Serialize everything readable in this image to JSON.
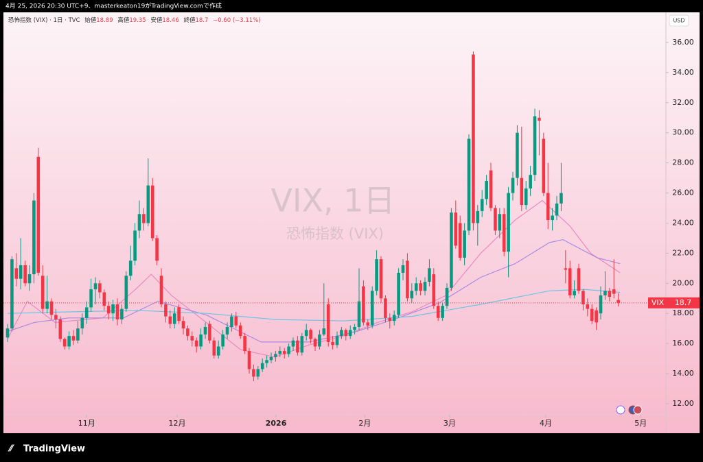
{
  "header": {
    "caption": "4月 25, 2026 20:30 UTC+9、masterkeaton19がTradingView.comで作成"
  },
  "legend": {
    "symbol": "恐怖指数 (VIX) · 1日 · TVC",
    "open_label": "始値",
    "high_label": "高値",
    "low_label": "安値",
    "close_label": "終値",
    "change": "−0.60 (−3.11%)"
  },
  "watermark": {
    "line1": "VIX, 1日",
    "line2": "恐怖指数 (VIX)"
  },
  "currency": "USD",
  "price_tag": {
    "symbol": "VIX"
  },
  "footer": {
    "brand": "TradingView"
  },
  "chart_data": {
    "type": "candlestick",
    "up_color": "#089981",
    "down_color": "#f23645",
    "xlim": [
      -0.94,
      149.84
    ],
    "xticks": [
      {
        "value": 18,
        "label": "11月"
      },
      {
        "value": 38.6,
        "label": "12月"
      },
      {
        "value": 61.1,
        "label": "2026"
      },
      {
        "value": 81.3,
        "label": "2月"
      },
      {
        "value": 100.6,
        "label": "3月"
      },
      {
        "value": 122.5,
        "label": "4月"
      },
      {
        "value": 144.1,
        "label": "5月"
      }
    ],
    "ylim": [
      10.04,
      37.91
    ],
    "yticks": [
      {
        "value": 12,
        "label": "12.00"
      },
      {
        "value": 14,
        "label": "14.00"
      },
      {
        "value": 16,
        "label": "16.00"
      },
      {
        "value": 18,
        "label": "18.00"
      },
      {
        "value": 20,
        "label": "20.00"
      },
      {
        "value": 22,
        "label": "22.00"
      },
      {
        "value": 24,
        "label": "24.00"
      },
      {
        "value": 26,
        "label": "26.00"
      },
      {
        "value": 28,
        "label": "28.00"
      },
      {
        "value": 30,
        "label": "30.00"
      },
      {
        "value": 32,
        "label": "32.00"
      },
      {
        "value": 34,
        "label": "34.00"
      },
      {
        "value": 36,
        "label": "36.00"
      }
    ],
    "grid": false,
    "ohlc": [
      [
        16.4,
        17.3,
        16.1,
        17.0
      ],
      [
        17.0,
        21.8,
        16.8,
        21.6
      ],
      [
        21.0,
        22.0,
        19.8,
        20.3
      ],
      [
        20.3,
        23.0,
        19.6,
        21.2
      ],
      [
        21.2,
        21.5,
        19.8,
        20.0
      ],
      [
        20.0,
        21.2,
        19.5,
        20.6
      ],
      [
        20.6,
        26.0,
        20.0,
        25.5
      ],
      [
        28.4,
        29.0,
        20.5,
        20.7
      ],
      [
        20.5,
        21.2,
        18.0,
        18.3
      ],
      [
        18.3,
        20.5,
        18.0,
        18.8
      ],
      [
        18.8,
        19.0,
        17.6,
        17.9
      ],
      [
        17.9,
        18.3,
        17.0,
        17.6
      ],
      [
        17.6,
        17.8,
        16.1,
        16.3
      ],
      [
        16.3,
        16.4,
        15.6,
        15.8
      ],
      [
        15.8,
        16.8,
        15.6,
        16.5
      ],
      [
        16.5,
        16.9,
        15.9,
        16.2
      ],
      [
        16.2,
        17.5,
        16.0,
        17.0
      ],
      [
        17.0,
        18.0,
        16.6,
        17.7
      ],
      [
        17.7,
        18.8,
        17.3,
        18.4
      ],
      [
        18.4,
        20.3,
        18.1,
        19.6
      ],
      [
        19.6,
        20.4,
        18.6,
        20.0
      ],
      [
        20.0,
        20.2,
        19.0,
        19.4
      ],
      [
        19.4,
        19.6,
        18.2,
        18.5
      ],
      [
        18.5,
        18.8,
        17.6,
        18.0
      ],
      [
        18.0,
        18.9,
        17.5,
        18.6
      ],
      [
        18.6,
        19.0,
        17.2,
        17.6
      ],
      [
        17.6,
        18.6,
        17.3,
        18.3
      ],
      [
        18.3,
        20.8,
        18.1,
        20.5
      ],
      [
        20.5,
        22.5,
        20.2,
        21.5
      ],
      [
        21.5,
        24.0,
        21.2,
        23.5
      ],
      [
        23.5,
        25.5,
        23.0,
        24.6
      ],
      [
        24.6,
        25.0,
        23.5,
        24.0
      ],
      [
        24.0,
        28.3,
        23.8,
        26.5
      ],
      [
        26.5,
        27.0,
        22.8,
        23.0
      ],
      [
        23.0,
        23.2,
        21.2,
        21.5
      ],
      [
        20.5,
        21.0,
        18.4,
        18.6
      ],
      [
        18.6,
        18.8,
        17.4,
        17.8
      ],
      [
        17.8,
        18.2,
        17.0,
        17.3
      ],
      [
        17.3,
        18.4,
        17.0,
        18.0
      ],
      [
        18.4,
        18.6,
        17.3,
        17.5
      ],
      [
        17.5,
        17.8,
        16.6,
        17.0
      ],
      [
        17.0,
        17.2,
        16.2,
        16.5
      ],
      [
        16.5,
        16.8,
        15.8,
        16.2
      ],
      [
        16.2,
        16.4,
        15.4,
        15.8
      ],
      [
        15.8,
        17.0,
        15.6,
        16.6
      ],
      [
        16.6,
        17.4,
        16.3,
        17.1
      ],
      [
        17.3,
        17.5,
        16.0,
        16.2
      ],
      [
        16.2,
        16.4,
        15.0,
        15.2
      ],
      [
        15.2,
        16.2,
        15.0,
        15.8
      ],
      [
        15.8,
        16.9,
        15.6,
        16.6
      ],
      [
        16.6,
        17.4,
        16.3,
        17.1
      ],
      [
        17.1,
        18.0,
        16.8,
        17.8
      ],
      [
        17.8,
        18.1,
        17.0,
        17.2
      ],
      [
        17.2,
        17.4,
        16.3,
        16.5
      ],
      [
        16.5,
        16.7,
        15.3,
        15.5
      ],
      [
        15.5,
        15.7,
        14.0,
        14.3
      ],
      [
        14.3,
        14.6,
        13.5,
        13.8
      ],
      [
        13.8,
        14.5,
        13.6,
        14.3
      ],
      [
        14.3,
        15.0,
        14.1,
        14.7
      ],
      [
        14.7,
        15.2,
        14.4,
        14.9
      ],
      [
        14.9,
        15.4,
        14.7,
        15.1
      ],
      [
        15.1,
        15.5,
        14.8,
        15.3
      ],
      [
        15.3,
        15.8,
        15.1,
        15.5
      ],
      [
        15.5,
        15.7,
        15.0,
        15.3
      ],
      [
        15.3,
        16.0,
        15.1,
        15.8
      ],
      [
        15.8,
        16.4,
        15.5,
        16.2
      ],
      [
        16.2,
        16.5,
        15.2,
        15.4
      ],
      [
        15.4,
        16.7,
        15.2,
        16.5
      ],
      [
        16.5,
        17.3,
        16.2,
        16.9
      ],
      [
        16.9,
        17.0,
        16.0,
        16.3
      ],
      [
        16.3,
        16.4,
        15.5,
        15.8
      ],
      [
        15.8,
        16.9,
        15.6,
        16.6
      ],
      [
        16.6,
        20.0,
        16.5,
        17.0
      ],
      [
        18.6,
        19.0,
        15.8,
        16.1
      ],
      [
        16.1,
        16.5,
        15.6,
        15.9
      ],
      [
        15.9,
        16.8,
        15.7,
        16.5
      ],
      [
        16.5,
        17.1,
        16.3,
        16.9
      ],
      [
        16.9,
        17.0,
        16.2,
        16.5
      ],
      [
        16.5,
        17.2,
        16.3,
        16.9
      ],
      [
        16.9,
        17.3,
        16.6,
        17.1
      ],
      [
        17.1,
        21.0,
        16.9,
        18.8
      ],
      [
        19.8,
        20.2,
        17.2,
        17.4
      ],
      [
        17.4,
        17.6,
        16.9,
        17.2
      ],
      [
        17.2,
        19.8,
        17.0,
        19.5
      ],
      [
        19.5,
        22.2,
        19.2,
        21.6
      ],
      [
        21.6,
        21.8,
        18.7,
        19.0
      ],
      [
        19.0,
        19.2,
        17.4,
        17.7
      ],
      [
        17.7,
        18.0,
        17.0,
        17.5
      ],
      [
        17.5,
        18.2,
        17.2,
        17.9
      ],
      [
        17.9,
        21.0,
        17.7,
        20.7
      ],
      [
        20.7,
        21.6,
        20.2,
        21.2
      ],
      [
        21.5,
        22.0,
        18.8,
        19.0
      ],
      [
        19.0,
        20.0,
        18.7,
        19.5
      ],
      [
        19.5,
        20.4,
        19.2,
        20.0
      ],
      [
        20.0,
        20.2,
        19.2,
        19.5
      ],
      [
        19.5,
        20.4,
        19.2,
        20.1
      ],
      [
        20.1,
        21.6,
        19.8,
        21.0
      ],
      [
        20.6,
        21.0,
        18.3,
        18.5
      ],
      [
        18.5,
        18.8,
        17.5,
        17.7
      ],
      [
        17.7,
        18.7,
        17.5,
        18.5
      ],
      [
        18.5,
        20.0,
        18.3,
        19.7
      ],
      [
        19.7,
        25.0,
        19.5,
        24.7
      ],
      [
        24.7,
        25.5,
        22.3,
        22.5
      ],
      [
        24.0,
        24.5,
        21.5,
        21.7
      ],
      [
        21.7,
        24.0,
        21.2,
        23.5
      ],
      [
        23.5,
        29.9,
        23.2,
        29.6
      ],
      [
        35.2,
        35.4,
        23.5,
        24.0
      ],
      [
        24.0,
        25.2,
        22.5,
        24.8
      ],
      [
        24.8,
        26.2,
        24.4,
        25.6
      ],
      [
        25.6,
        27.2,
        25.2,
        26.8
      ],
      [
        27.5,
        28.0,
        24.8,
        25.0
      ],
      [
        25.0,
        25.2,
        23.2,
        23.5
      ],
      [
        23.5,
        25.0,
        23.0,
        24.6
      ],
      [
        24.6,
        25.0,
        21.8,
        22.1
      ],
      [
        22.1,
        26.4,
        20.4,
        26.0
      ],
      [
        26.0,
        27.4,
        25.5,
        27.0
      ],
      [
        27.0,
        30.5,
        26.5,
        30.0
      ],
      [
        27.0,
        30.4,
        24.8,
        25.2
      ],
      [
        25.2,
        26.8,
        24.9,
        26.3
      ],
      [
        26.3,
        27.8,
        25.8,
        27.2
      ],
      [
        27.2,
        31.6,
        26.8,
        31.1
      ],
      [
        31.0,
        31.5,
        28.5,
        30.8
      ],
      [
        29.6,
        30.0,
        25.8,
        26.0
      ],
      [
        26.0,
        28.0,
        23.6,
        24.2
      ],
      [
        24.2,
        25.0,
        23.5,
        24.5
      ],
      [
        24.5,
        25.8,
        24.2,
        25.3
      ],
      [
        25.3,
        28.0,
        24.8,
        26.0
      ],
      [
        21.0,
        22.2,
        20.0,
        20.9
      ],
      [
        21.0,
        21.5,
        19.0,
        19.2
      ],
      [
        19.2,
        20.2,
        19.0,
        19.5
      ],
      [
        21.0,
        21.3,
        19.3,
        19.5
      ],
      [
        19.5,
        19.6,
        18.2,
        18.6
      ],
      [
        18.6,
        19.0,
        17.8,
        18.3
      ],
      [
        18.3,
        18.6,
        17.3,
        17.5
      ],
      [
        18.2,
        18.4,
        16.9,
        17.4
      ],
      [
        18.0,
        19.8,
        17.6,
        19.2
      ],
      [
        19.2,
        20.8,
        18.9,
        19.5
      ],
      [
        19.5,
        19.7,
        18.8,
        19.1
      ],
      [
        19.6,
        21.6,
        19.0,
        19.3
      ],
      [
        18.89,
        19.35,
        18.46,
        18.7
      ]
    ],
    "lines": [
      {
        "color": "#e98ac0",
        "x": [
          0,
          4.5,
          10.8,
          21.7,
          29.5,
          32.7,
          37.3,
          45.2,
          53,
          60.8,
          68.6,
          76.4,
          84.2,
          92,
          99.8,
          107.7,
          115.5,
          121.7,
          128,
          132.7,
          139.4
        ],
        "values": [
          16.3,
          18.8,
          17.4,
          17.7,
          19.7,
          20.6,
          19.2,
          17.4,
          15.6,
          15.1,
          15.9,
          16.5,
          17.4,
          18.1,
          19.2,
          22.0,
          24.2,
          25.5,
          23.8,
          22.0,
          20.7
        ]
      },
      {
        "color": "#a98be0",
        "x": [
          0,
          6.1,
          13.9,
          26.4,
          34.2,
          45.2,
          57.7,
          68.6,
          79.5,
          88.9,
          98.3,
          107.7,
          115.5,
          123.3,
          126.4,
          134.2,
          139.4
        ],
        "values": [
          16.8,
          17.4,
          17.7,
          17.7,
          18.8,
          17.9,
          16.1,
          16.1,
          16.8,
          17.7,
          18.7,
          20.4,
          21.3,
          22.7,
          22.9,
          21.7,
          21.3
        ]
      },
      {
        "color": "#6cc4e4",
        "x": [
          0,
          13.9,
          29.5,
          45.2,
          60.8,
          76.4,
          92,
          107.7,
          123.3,
          131.1,
          139.4
        ],
        "values": [
          18.0,
          18.1,
          18.2,
          18.0,
          17.6,
          17.5,
          17.8,
          18.6,
          19.5,
          19.6,
          19.4
        ]
      }
    ]
  }
}
